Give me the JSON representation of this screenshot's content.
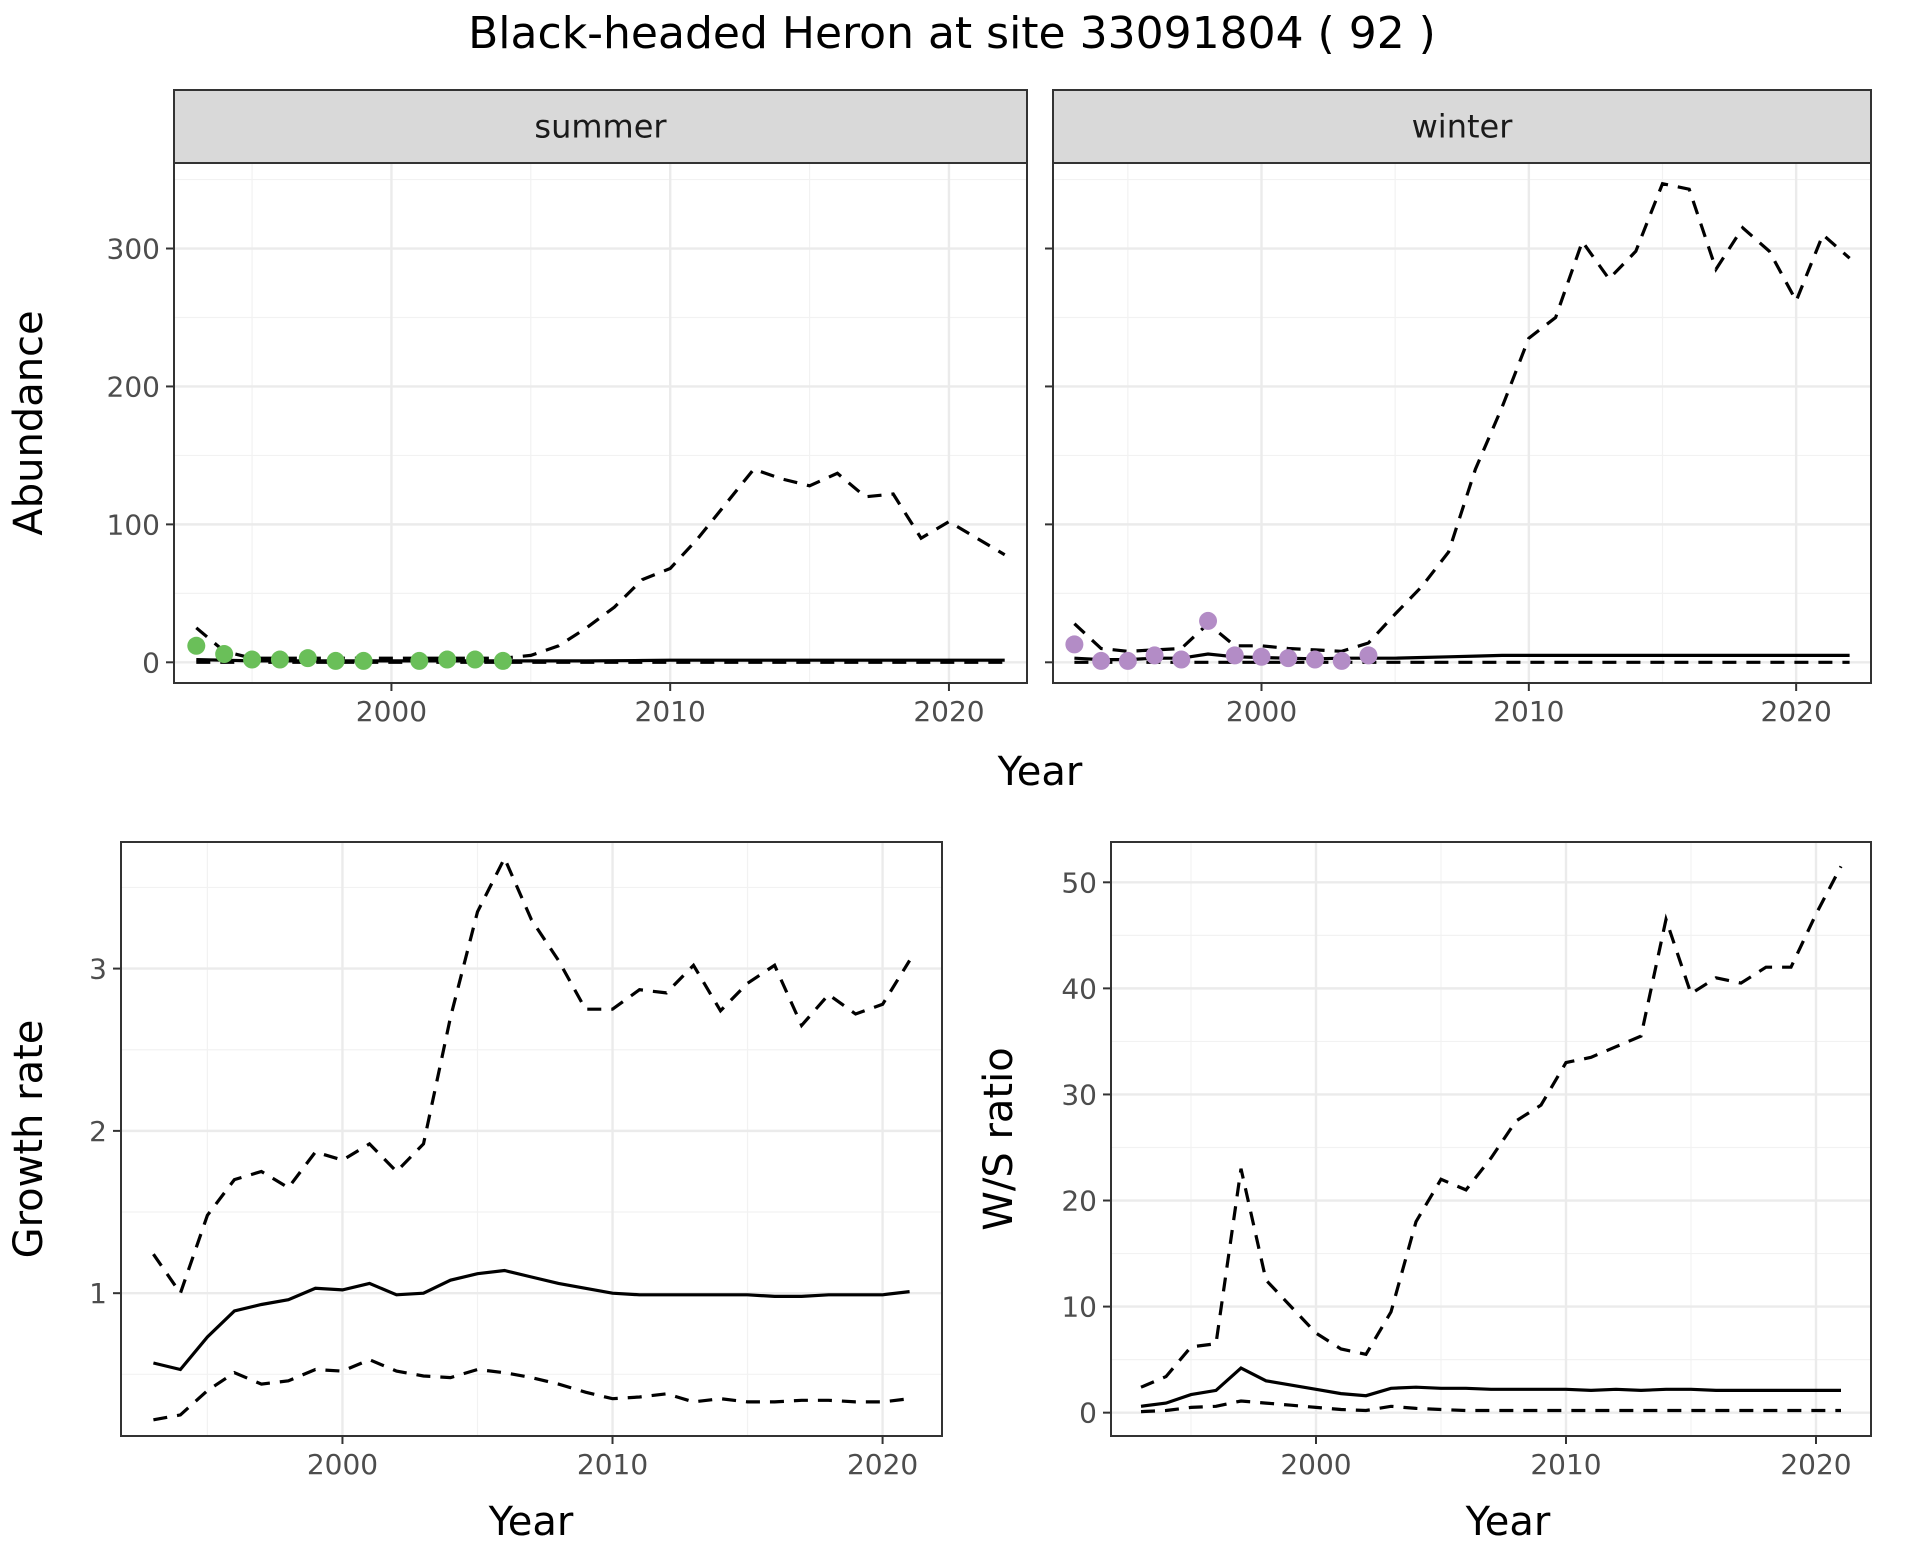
{
  "title": "Black-headed Heron at site 33091804 ( 92 )",
  "colors": {
    "summer_points": "#6abf59",
    "winter_points": "#b38cc6",
    "lines": "#000000"
  },
  "chart_data": [
    {
      "type": "line",
      "panel": "summer",
      "strip_label": "summer",
      "ylabel": "Abundance",
      "xlabel": "Year",
      "xlim": [
        1992.2,
        2022.8
      ],
      "ylim": [
        -15,
        362
      ],
      "xticks": [
        2000,
        2010,
        2020
      ],
      "yticks": [
        0,
        100,
        200,
        300
      ],
      "grid": true,
      "x": [
        1993,
        1994,
        1995,
        1996,
        1997,
        1998,
        1999,
        2000,
        2001,
        2002,
        2003,
        2004,
        2005,
        2006,
        2007,
        2008,
        2009,
        2010,
        2011,
        2012,
        2013,
        2014,
        2015,
        2016,
        2017,
        2018,
        2019,
        2020,
        2021,
        2022
      ],
      "series": [
        {
          "role": "mean",
          "values": [
            2,
            1.5,
            1,
            1,
            1,
            1,
            1,
            1,
            1,
            1,
            1,
            1,
            1,
            1,
            1,
            1.2,
            1.3,
            1.5,
            1.5,
            1.5,
            1.5,
            1.5,
            1.5,
            1.5,
            1.5,
            1.5,
            1.5,
            1.5,
            1.5,
            1.5
          ]
        },
        {
          "role": "upper",
          "values": [
            25,
            8,
            3,
            3,
            3,
            3,
            3,
            3,
            3,
            3,
            3,
            3,
            5,
            12,
            25,
            40,
            60,
            68,
            90,
            115,
            140,
            133,
            128,
            137,
            120,
            122,
            90,
            102,
            90,
            78
          ]
        },
        {
          "role": "lower",
          "values": [
            0,
            0,
            0,
            0,
            0,
            0,
            0,
            0,
            0,
            0,
            0,
            0,
            0,
            0,
            0,
            0,
            0,
            0,
            0,
            0,
            0,
            0,
            0,
            0,
            0,
            0,
            0,
            0,
            0,
            0
          ]
        }
      ],
      "points": {
        "x": [
          1993,
          1994,
          1995,
          1996,
          1997,
          1998,
          1999,
          2001,
          2002,
          2003,
          2004
        ],
        "y": [
          12,
          6,
          2,
          2,
          3,
          1,
          1,
          1,
          2,
          2,
          1
        ]
      }
    },
    {
      "type": "line",
      "panel": "winter",
      "strip_label": "winter",
      "ylabel": "Abundance",
      "xlabel": "Year",
      "xlim": [
        1992.2,
        2022.8
      ],
      "ylim": [
        -15,
        362
      ],
      "xticks": [
        2000,
        2010,
        2020
      ],
      "yticks": [
        0,
        100,
        200,
        300
      ],
      "grid": true,
      "x": [
        1993,
        1994,
        1995,
        1996,
        1997,
        1998,
        1999,
        2000,
        2001,
        2002,
        2003,
        2004,
        2005,
        2006,
        2007,
        2008,
        2009,
        2010,
        2011,
        2012,
        2013,
        2014,
        2015,
        2016,
        2017,
        2018,
        2019,
        2020,
        2021,
        2022
      ],
      "series": [
        {
          "role": "mean",
          "values": [
            3,
            2,
            2,
            3,
            3,
            6,
            4,
            3.5,
            3,
            2.5,
            3,
            3,
            3,
            3.5,
            4,
            4.5,
            5,
            5,
            5,
            5,
            5,
            5,
            5,
            5,
            5,
            5,
            5,
            5,
            5,
            5
          ]
        },
        {
          "role": "upper",
          "values": [
            28,
            10,
            8,
            9,
            10,
            28,
            12,
            12,
            10,
            9,
            8,
            14,
            35,
            55,
            80,
            140,
            185,
            235,
            250,
            305,
            278,
            298,
            347,
            343,
            285,
            315,
            298,
            262,
            310,
            293
          ]
        },
        {
          "role": "lower",
          "values": [
            0,
            0,
            0,
            0,
            0,
            0,
            0,
            0,
            0,
            0,
            0,
            0,
            0,
            0,
            0,
            0,
            0,
            0,
            0,
            0,
            0,
            0,
            0,
            0,
            0,
            0,
            0,
            0,
            0,
            0
          ]
        }
      ],
      "points": {
        "x": [
          1993,
          1994,
          1995,
          1996,
          1997,
          1998,
          1999,
          2000,
          2001,
          2002,
          2003,
          2004
        ],
        "y": [
          13,
          1,
          1,
          5,
          2,
          30,
          5,
          4,
          3,
          2,
          1,
          5
        ]
      }
    },
    {
      "type": "line",
      "panel": "growth",
      "ylabel": "Growth rate",
      "xlabel": "Year",
      "xlim": [
        1991.8,
        2022.2
      ],
      "ylim": [
        0.12,
        3.78
      ],
      "xticks": [
        2000,
        2010,
        2020
      ],
      "yticks": [
        1,
        2,
        3
      ],
      "grid": true,
      "x": [
        1993,
        1994,
        1995,
        1996,
        1997,
        1998,
        1999,
        2000,
        2001,
        2002,
        2003,
        2004,
        2005,
        2006,
        2007,
        2008,
        2009,
        2010,
        2011,
        2012,
        2013,
        2014,
        2015,
        2016,
        2017,
        2018,
        2019,
        2020,
        2021
      ],
      "series": [
        {
          "role": "mean",
          "values": [
            0.57,
            0.53,
            0.73,
            0.89,
            0.93,
            0.96,
            1.03,
            1.02,
            1.06,
            0.99,
            1.0,
            1.08,
            1.12,
            1.14,
            1.1,
            1.06,
            1.03,
            1.0,
            0.99,
            0.99,
            0.99,
            0.99,
            0.99,
            0.98,
            0.98,
            0.99,
            0.99,
            0.99,
            1.01
          ]
        },
        {
          "role": "upper",
          "values": [
            1.24,
            1.0,
            1.48,
            1.7,
            1.75,
            1.65,
            1.87,
            1.82,
            1.92,
            1.75,
            1.92,
            2.7,
            3.35,
            3.68,
            3.3,
            3.05,
            2.75,
            2.75,
            2.87,
            2.85,
            3.02,
            2.74,
            2.91,
            3.02,
            2.65,
            2.84,
            2.72,
            2.78,
            3.05
          ]
        },
        {
          "role": "lower",
          "values": [
            0.22,
            0.25,
            0.4,
            0.51,
            0.44,
            0.46,
            0.53,
            0.52,
            0.59,
            0.52,
            0.49,
            0.48,
            0.53,
            0.51,
            0.48,
            0.44,
            0.39,
            0.35,
            0.36,
            0.38,
            0.33,
            0.35,
            0.33,
            0.33,
            0.34,
            0.34,
            0.33,
            0.33,
            0.35
          ]
        }
      ]
    },
    {
      "type": "line",
      "panel": "ws_ratio",
      "ylabel": "W/S ratio",
      "xlabel": "Year",
      "xlim": [
        1991.8,
        2022.2
      ],
      "ylim": [
        -2.2,
        53.8
      ],
      "xticks": [
        2000,
        2010,
        2020
      ],
      "yticks": [
        0,
        10,
        20,
        30,
        40,
        50
      ],
      "grid": true,
      "x": [
        1993,
        1994,
        1995,
        1996,
        1997,
        1998,
        1999,
        2000,
        2001,
        2002,
        2003,
        2004,
        2005,
        2006,
        2007,
        2008,
        2009,
        2010,
        2011,
        2012,
        2013,
        2014,
        2015,
        2016,
        2017,
        2018,
        2019,
        2020,
        2021
      ],
      "series": [
        {
          "role": "mean",
          "values": [
            0.6,
            0.9,
            1.7,
            2.1,
            4.2,
            3.0,
            2.6,
            2.2,
            1.8,
            1.6,
            2.3,
            2.4,
            2.3,
            2.3,
            2.2,
            2.2,
            2.2,
            2.2,
            2.1,
            2.2,
            2.1,
            2.2,
            2.2,
            2.1,
            2.1,
            2.1,
            2.1,
            2.1,
            2.1
          ]
        },
        {
          "role": "upper",
          "values": [
            2.4,
            3.4,
            6.2,
            6.5,
            23.0,
            12.5,
            10.0,
            7.5,
            6.0,
            5.5,
            9.5,
            18.0,
            22.0,
            21.0,
            24.0,
            27.5,
            29.0,
            33.0,
            33.5,
            34.5,
            35.5,
            46.5,
            39.5,
            41.0,
            40.5,
            42.0,
            42.0,
            47.0,
            51.5
          ]
        },
        {
          "role": "lower",
          "values": [
            0.1,
            0.2,
            0.5,
            0.6,
            1.1,
            0.9,
            0.7,
            0.5,
            0.3,
            0.2,
            0.6,
            0.4,
            0.3,
            0.2,
            0.2,
            0.2,
            0.2,
            0.2,
            0.2,
            0.2,
            0.2,
            0.2,
            0.2,
            0.2,
            0.2,
            0.2,
            0.2,
            0.2,
            0.2
          ]
        }
      ]
    }
  ]
}
